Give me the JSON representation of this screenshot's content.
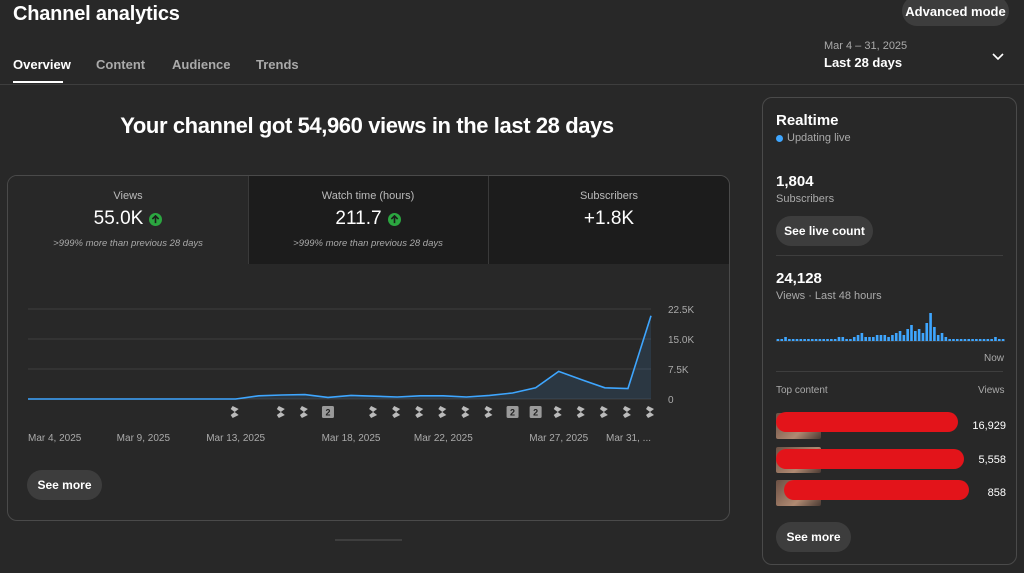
{
  "header": {
    "title": "Channel analytics",
    "advanced_mode": "Advanced mode",
    "tabs": [
      {
        "label": "Overview"
      },
      {
        "label": "Content"
      },
      {
        "label": "Audience"
      },
      {
        "label": "Trends"
      }
    ],
    "date_range": "Mar 4 – 31, 2025",
    "date_label": "Last 28 days"
  },
  "headline": "Your channel got 54,960 views in the last 28 days",
  "metrics": [
    {
      "label": "Views",
      "value": "55.0K",
      "comparison": ">999% more than previous 28 days"
    },
    {
      "label": "Watch time (hours)",
      "value": "211.7",
      "comparison": ">999% more than previous 28 days"
    },
    {
      "label": "Subscribers",
      "value": "+1.8K"
    }
  ],
  "chart_data": {
    "type": "area",
    "x": [
      "Mar 4",
      "Mar 5",
      "Mar 6",
      "Mar 7",
      "Mar 8",
      "Mar 9",
      "Mar 10",
      "Mar 11",
      "Mar 12",
      "Mar 13",
      "Mar 14",
      "Mar 15",
      "Mar 16",
      "Mar 17",
      "Mar 18",
      "Mar 19",
      "Mar 20",
      "Mar 21",
      "Mar 22",
      "Mar 23",
      "Mar 24",
      "Mar 25",
      "Mar 26",
      "Mar 27",
      "Mar 28",
      "Mar 29",
      "Mar 30",
      "Mar 31"
    ],
    "values": [
      0,
      0,
      0,
      0,
      0,
      0,
      0,
      0,
      0,
      0,
      800,
      1000,
      1100,
      400,
      900,
      700,
      500,
      800,
      800,
      500,
      900,
      1500,
      2800,
      6900,
      4800,
      2800,
      2600,
      20800
    ],
    "ylim": [
      0,
      22500
    ],
    "y_ticks": [
      "22.5K",
      "15.0K",
      "7.5K",
      "0"
    ],
    "x_tick_labels": [
      {
        "index": 0,
        "label": "Mar 4, 2025"
      },
      {
        "index": 5,
        "label": "Mar 9, 2025"
      },
      {
        "index": 9,
        "label": "Mar 13, 2025"
      },
      {
        "index": 14,
        "label": "Mar 18, 2025"
      },
      {
        "index": 18,
        "label": "Mar 22, 2025"
      },
      {
        "index": 23,
        "label": "Mar 27, 2025"
      },
      {
        "index": 27,
        "label": "Mar 31, ..."
      }
    ],
    "markers": [
      {
        "index": 9,
        "kind": "shorts-icon"
      },
      {
        "index": 11,
        "kind": "shorts-icon"
      },
      {
        "index": 12,
        "kind": "shorts-icon"
      },
      {
        "index": 13,
        "kind": "badge",
        "text": "2"
      },
      {
        "index": 15,
        "kind": "shorts-icon"
      },
      {
        "index": 16,
        "kind": "shorts-icon"
      },
      {
        "index": 17,
        "kind": "shorts-icon"
      },
      {
        "index": 18,
        "kind": "shorts-icon"
      },
      {
        "index": 19,
        "kind": "shorts-icon"
      },
      {
        "index": 20,
        "kind": "shorts-icon"
      },
      {
        "index": 21,
        "kind": "badge",
        "text": "2"
      },
      {
        "index": 22,
        "kind": "badge",
        "text": "2"
      },
      {
        "index": 23,
        "kind": "shorts-icon"
      },
      {
        "index": 24,
        "kind": "shorts-icon"
      },
      {
        "index": 25,
        "kind": "shorts-icon"
      },
      {
        "index": 26,
        "kind": "shorts-icon"
      },
      {
        "index": 27,
        "kind": "shorts-icon"
      }
    ],
    "line_color": "#3ea6ff",
    "grid": true
  },
  "main_see_more": "See more",
  "realtime": {
    "title": "Realtime",
    "status": "Updating live",
    "subscribers_value": "1,804",
    "subscribers_label": "Subscribers",
    "see_live_count": "See live count",
    "views_value": "24,128",
    "views_label": "Views · Last 48 hours",
    "now_label": "Now",
    "histogram": [
      1,
      1,
      2,
      1,
      1,
      1,
      1,
      1,
      1,
      1,
      1,
      1,
      1,
      1,
      1,
      1,
      2,
      2,
      1,
      1,
      2,
      3,
      4,
      2,
      2,
      2,
      3,
      3,
      3,
      2,
      3,
      4,
      5,
      3,
      6,
      8,
      5,
      6,
      4,
      9,
      14,
      7,
      3,
      4,
      2,
      1,
      1,
      1,
      1,
      1,
      1,
      1,
      1,
      1,
      1,
      1,
      1,
      2,
      1,
      1
    ],
    "top_content_label": "Top content",
    "views_column_label": "Views",
    "top_content": [
      {
        "views": "16,929"
      },
      {
        "views": "5,558"
      },
      {
        "views": "858"
      }
    ],
    "see_more": "See more"
  },
  "colors": {
    "accent": "#3ea6ff",
    "up_arrow": "#2ba640",
    "redaction": "#e3141a"
  }
}
